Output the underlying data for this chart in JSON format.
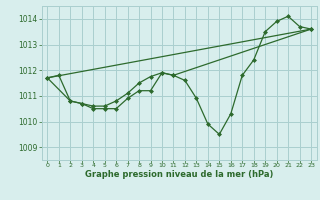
{
  "bg_color": "#d8eeed",
  "grid_color": "#aacfcf",
  "line_color": "#2d6a2d",
  "marker_color": "#2d6a2d",
  "title": "Graphe pression niveau de la mer (hPa)",
  "xlim": [
    -0.5,
    23.5
  ],
  "ylim": [
    1008.5,
    1014.5
  ],
  "yticks": [
    1009,
    1010,
    1011,
    1012,
    1013,
    1014
  ],
  "xticks": [
    0,
    1,
    2,
    3,
    4,
    5,
    6,
    7,
    8,
    9,
    10,
    11,
    12,
    13,
    14,
    15,
    16,
    17,
    18,
    19,
    20,
    21,
    22,
    23
  ],
  "series1_x": [
    0,
    1,
    2,
    3,
    4,
    5,
    6,
    7,
    8,
    9,
    10,
    11,
    12,
    13,
    14,
    15,
    16,
    17,
    18,
    19,
    20,
    21,
    22,
    23
  ],
  "series1_y": [
    1011.7,
    1011.8,
    1010.8,
    1010.7,
    1010.5,
    1010.5,
    1010.5,
    1010.9,
    1011.2,
    1011.2,
    1011.9,
    1011.8,
    1011.6,
    1010.9,
    1009.9,
    1009.5,
    1010.3,
    1011.8,
    1012.4,
    1013.5,
    1013.9,
    1014.1,
    1013.7,
    1013.6
  ],
  "series2_x": [
    0,
    2,
    3,
    4,
    5,
    6,
    7,
    8,
    9,
    10,
    11,
    23
  ],
  "series2_y": [
    1011.7,
    1010.8,
    1010.7,
    1010.6,
    1010.6,
    1010.8,
    1011.1,
    1011.5,
    1011.75,
    1011.9,
    1011.8,
    1013.6
  ],
  "series3_x": [
    0,
    23
  ],
  "series3_y": [
    1011.7,
    1013.6
  ]
}
